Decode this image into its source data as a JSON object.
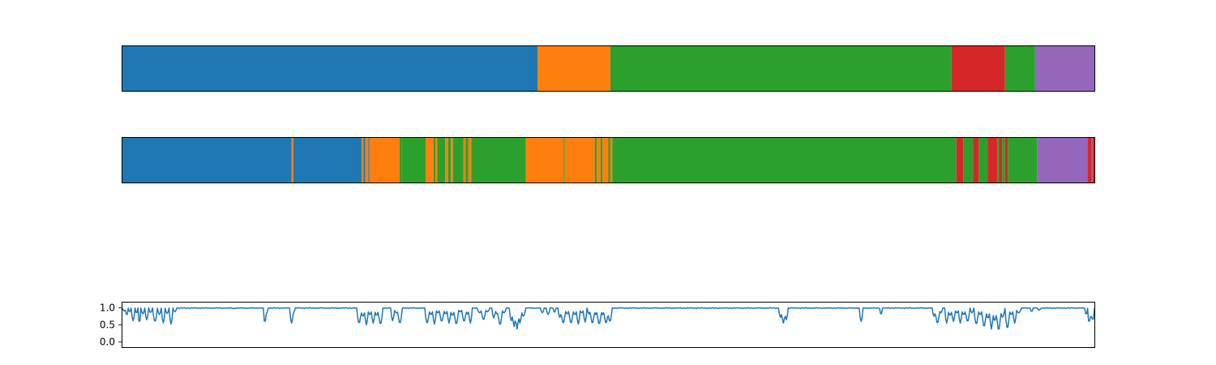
{
  "chart_data": [
    {
      "type": "segment-bar",
      "xlim": [
        0,
        1000
      ],
      "segments": [
        {
          "start": 0,
          "end": 427,
          "color": "#1f77b4"
        },
        {
          "start": 427,
          "end": 502,
          "color": "#ff7f0e"
        },
        {
          "start": 502,
          "end": 853,
          "color": "#2ca02c"
        },
        {
          "start": 853,
          "end": 908,
          "color": "#d62728"
        },
        {
          "start": 908,
          "end": 939,
          "color": "#2ca02c"
        },
        {
          "start": 939,
          "end": 1000,
          "color": "#9467bd"
        }
      ]
    },
    {
      "type": "segment-bar",
      "xlim": [
        0,
        1000
      ],
      "segments": [
        {
          "start": 0,
          "end": 174,
          "color": "#1f77b4"
        },
        {
          "start": 174,
          "end": 176,
          "color": "#ff7f0e"
        },
        {
          "start": 176,
          "end": 246,
          "color": "#1f77b4"
        },
        {
          "start": 246,
          "end": 248,
          "color": "#ff7f0e"
        },
        {
          "start": 248,
          "end": 250,
          "color": "#1f77b4"
        },
        {
          "start": 250,
          "end": 253,
          "color": "#ff7f0e"
        },
        {
          "start": 253,
          "end": 254,
          "color": "#1f77b4"
        },
        {
          "start": 254,
          "end": 285,
          "color": "#ff7f0e"
        },
        {
          "start": 285,
          "end": 287,
          "color": "#2ca02c"
        },
        {
          "start": 287,
          "end": 312,
          "color": "#2ca02c"
        },
        {
          "start": 312,
          "end": 320,
          "color": "#ff7f0e"
        },
        {
          "start": 320,
          "end": 322,
          "color": "#2ca02c"
        },
        {
          "start": 322,
          "end": 324,
          "color": "#ff7f0e"
        },
        {
          "start": 324,
          "end": 332,
          "color": "#2ca02c"
        },
        {
          "start": 332,
          "end": 335,
          "color": "#ff7f0e"
        },
        {
          "start": 335,
          "end": 338,
          "color": "#2ca02c"
        },
        {
          "start": 338,
          "end": 340,
          "color": "#ff7f0e"
        },
        {
          "start": 340,
          "end": 351,
          "color": "#2ca02c"
        },
        {
          "start": 351,
          "end": 353,
          "color": "#ff7f0e"
        },
        {
          "start": 353,
          "end": 356,
          "color": "#2ca02c"
        },
        {
          "start": 356,
          "end": 359,
          "color": "#ff7f0e"
        },
        {
          "start": 359,
          "end": 415,
          "color": "#2ca02c"
        },
        {
          "start": 415,
          "end": 454,
          "color": "#ff7f0e"
        },
        {
          "start": 454,
          "end": 455,
          "color": "#2ca02c"
        },
        {
          "start": 455,
          "end": 486,
          "color": "#ff7f0e"
        },
        {
          "start": 486,
          "end": 488,
          "color": "#2ca02c"
        },
        {
          "start": 488,
          "end": 492,
          "color": "#ff7f0e"
        },
        {
          "start": 492,
          "end": 494,
          "color": "#2ca02c"
        },
        {
          "start": 494,
          "end": 500,
          "color": "#ff7f0e"
        },
        {
          "start": 500,
          "end": 502,
          "color": "#2ca02c"
        },
        {
          "start": 502,
          "end": 504,
          "color": "#ff7f0e"
        },
        {
          "start": 504,
          "end": 858,
          "color": "#2ca02c"
        },
        {
          "start": 858,
          "end": 865,
          "color": "#d62728"
        },
        {
          "start": 865,
          "end": 875,
          "color": "#2ca02c"
        },
        {
          "start": 875,
          "end": 881,
          "color": "#d62728"
        },
        {
          "start": 881,
          "end": 890,
          "color": "#2ca02c"
        },
        {
          "start": 890,
          "end": 900,
          "color": "#d62728"
        },
        {
          "start": 900,
          "end": 902,
          "color": "#2ca02c"
        },
        {
          "start": 902,
          "end": 905,
          "color": "#d62728"
        },
        {
          "start": 905,
          "end": 908,
          "color": "#2ca02c"
        },
        {
          "start": 908,
          "end": 911,
          "color": "#d62728"
        },
        {
          "start": 911,
          "end": 941,
          "color": "#2ca02c"
        },
        {
          "start": 941,
          "end": 993,
          "color": "#9467bd"
        },
        {
          "start": 993,
          "end": 997,
          "color": "#d62728"
        },
        {
          "start": 997,
          "end": 998,
          "color": "#9467bd"
        },
        {
          "start": 998,
          "end": 1000,
          "color": "#d62728"
        }
      ]
    },
    {
      "type": "line",
      "xlim": [
        0,
        1000
      ],
      "ylim": [
        -0.15,
        1.15
      ],
      "yticks": [
        "1.0",
        "0.5",
        "0.0"
      ],
      "ytick_values": [
        1.0,
        0.5,
        0.0
      ],
      "color": "#1f77b4",
      "baseline": 0.99,
      "dips": [
        [
          0,
          4,
          0.9
        ],
        [
          3,
          6,
          0.78
        ],
        [
          6,
          9,
          0.88
        ],
        [
          9,
          13,
          0.62
        ],
        [
          13,
          16,
          0.84
        ],
        [
          16,
          19,
          0.55
        ],
        [
          19,
          23,
          0.82
        ],
        [
          23,
          27,
          0.65
        ],
        [
          27,
          31,
          0.86
        ],
        [
          31,
          36,
          0.6
        ],
        [
          36,
          40,
          0.8
        ],
        [
          40,
          44,
          0.56
        ],
        [
          44,
          48,
          0.83
        ],
        [
          48,
          52,
          0.52
        ],
        [
          52,
          56,
          0.88
        ],
        [
          113,
          116,
          0.97
        ],
        [
          145,
          148,
          0.55
        ],
        [
          146,
          150,
          0.82
        ],
        [
          172,
          176,
          0.55
        ],
        [
          173,
          178,
          0.84
        ],
        [
          241,
          246,
          0.55
        ],
        [
          245,
          250,
          0.75
        ],
        [
          249,
          253,
          0.5
        ],
        [
          252,
          257,
          0.8
        ],
        [
          256,
          260,
          0.55
        ],
        [
          259,
          264,
          0.78
        ],
        [
          263,
          268,
          0.52
        ],
        [
          276,
          280,
          0.62
        ],
        [
          279,
          285,
          0.85
        ],
        [
          283,
          288,
          0.55
        ],
        [
          311,
          316,
          0.55
        ],
        [
          315,
          320,
          0.8
        ],
        [
          319,
          323,
          0.52
        ],
        [
          322,
          327,
          0.85
        ],
        [
          326,
          331,
          0.6
        ],
        [
          330,
          335,
          0.82
        ],
        [
          334,
          338,
          0.55
        ],
        [
          337,
          342,
          0.78
        ],
        [
          341,
          346,
          0.52
        ],
        [
          345,
          350,
          0.88
        ],
        [
          349,
          354,
          0.6
        ],
        [
          353,
          357,
          0.82
        ],
        [
          356,
          360,
          0.55
        ],
        [
          365,
          370,
          0.85
        ],
        [
          369,
          374,
          0.65
        ],
        [
          373,
          378,
          0.88
        ],
        [
          380,
          384,
          0.7
        ],
        [
          383,
          388,
          0.82
        ],
        [
          386,
          391,
          0.5
        ],
        [
          390,
          395,
          0.85
        ],
        [
          398,
          402,
          0.62
        ],
        [
          401,
          405,
          0.45
        ],
        [
          404,
          408,
          0.38
        ],
        [
          407,
          411,
          0.55
        ],
        [
          410,
          415,
          0.75
        ],
        [
          430,
          434,
          0.85
        ],
        [
          436,
          440,
          0.8
        ],
        [
          443,
          446,
          0.86
        ],
        [
          448,
          452,
          0.72
        ],
        [
          451,
          456,
          0.55
        ],
        [
          455,
          460,
          0.82
        ],
        [
          459,
          464,
          0.55
        ],
        [
          463,
          468,
          0.8
        ],
        [
          467,
          471,
          0.52
        ],
        [
          470,
          475,
          0.85
        ],
        [
          474,
          478,
          0.58
        ],
        [
          478,
          482,
          0.82
        ],
        [
          481,
          486,
          0.55
        ],
        [
          485,
          489,
          0.8
        ],
        [
          488,
          493,
          0.52
        ],
        [
          492,
          496,
          0.8
        ],
        [
          495,
          500,
          0.55
        ],
        [
          499,
          504,
          0.6
        ],
        [
          675,
          679,
          0.72
        ],
        [
          678,
          682,
          0.55
        ],
        [
          681,
          685,
          0.65
        ],
        [
          758,
          762,
          0.6
        ],
        [
          779,
          782,
          0.8
        ],
        [
          833,
          837,
          0.75
        ],
        [
          836,
          841,
          0.55
        ],
        [
          840,
          844,
          0.85
        ],
        [
          846,
          850,
          0.55
        ],
        [
          849,
          854,
          0.78
        ],
        [
          853,
          857,
          0.6
        ],
        [
          856,
          861,
          0.85
        ],
        [
          860,
          864,
          0.55
        ],
        [
          863,
          868,
          0.8
        ],
        [
          867,
          872,
          0.6
        ],
        [
          872,
          876,
          0.85
        ],
        [
          876,
          881,
          0.52
        ],
        [
          880,
          885,
          0.8
        ],
        [
          884,
          889,
          0.45
        ],
        [
          888,
          893,
          0.7
        ],
        [
          892,
          896,
          0.38
        ],
        [
          895,
          900,
          0.62
        ],
        [
          899,
          904,
          0.35
        ],
        [
          903,
          908,
          0.72
        ],
        [
          908,
          913,
          0.4
        ],
        [
          912,
          917,
          0.8
        ],
        [
          916,
          920,
          0.55
        ],
        [
          919,
          925,
          0.85
        ],
        [
          934,
          937,
          0.88
        ],
        [
          941,
          945,
          0.93
        ],
        [
          990,
          993,
          0.8
        ],
        [
          993,
          996,
          0.55
        ],
        [
          995,
          998,
          0.7
        ],
        [
          997,
          1000,
          0.62
        ]
      ]
    }
  ]
}
